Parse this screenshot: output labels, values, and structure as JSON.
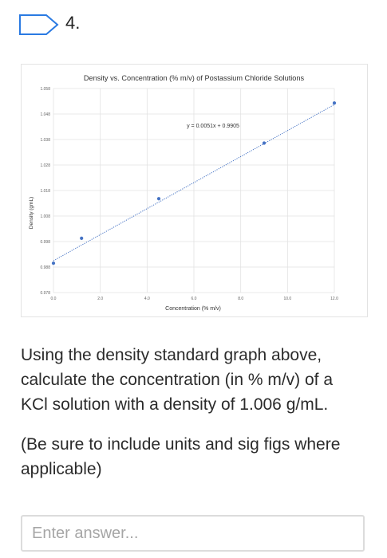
{
  "question": {
    "number": "4.",
    "flag_color": "#2a7ae2",
    "flag_icon": "bookmark-flag-icon",
    "prompt": "Using the density standard graph above, calculate the concentration (in % m/v) of a KCl solution with a density of 1.006 g/mL.",
    "hint": "(Be sure to include units and sig figs where applicable)"
  },
  "answer": {
    "placeholder": "Enter answer...",
    "value": ""
  },
  "chart_data": {
    "type": "scatter",
    "title": "Density vs. Concentration (% m/v) of Postassium Chloride Solutions",
    "xlabel": "Concentration (% m/v)",
    "ylabel": "Density (gmL)",
    "xlim": [
      0,
      12
    ],
    "ylim": [
      0.978,
      1.058
    ],
    "x_ticks": [
      "0.0",
      "2.0",
      "4.0",
      "6.0",
      "8.0",
      "10.0",
      "12.0"
    ],
    "y_ticks": [
      "0.978",
      "0.988",
      "0.998",
      "1.008",
      "1.018",
      "1.028",
      "1.038",
      "1.048",
      "1.058"
    ],
    "grid": true,
    "series": [
      {
        "color": "#4472c4",
        "points": [
          {
            "x": 0.0,
            "y": 0.9895
          },
          {
            "x": 1.2,
            "y": 0.9993
          },
          {
            "x": 4.5,
            "y": 1.0148
          },
          {
            "x": 9.0,
            "y": 1.0366
          },
          {
            "x": 12.0,
            "y": 1.0523
          }
        ]
      }
    ],
    "trendline": {
      "slope": 0.0051,
      "intercept": 0.9905,
      "equation": "y = 0.0051x + 0.9905",
      "style": "dotted",
      "color": "#4472c4"
    }
  }
}
